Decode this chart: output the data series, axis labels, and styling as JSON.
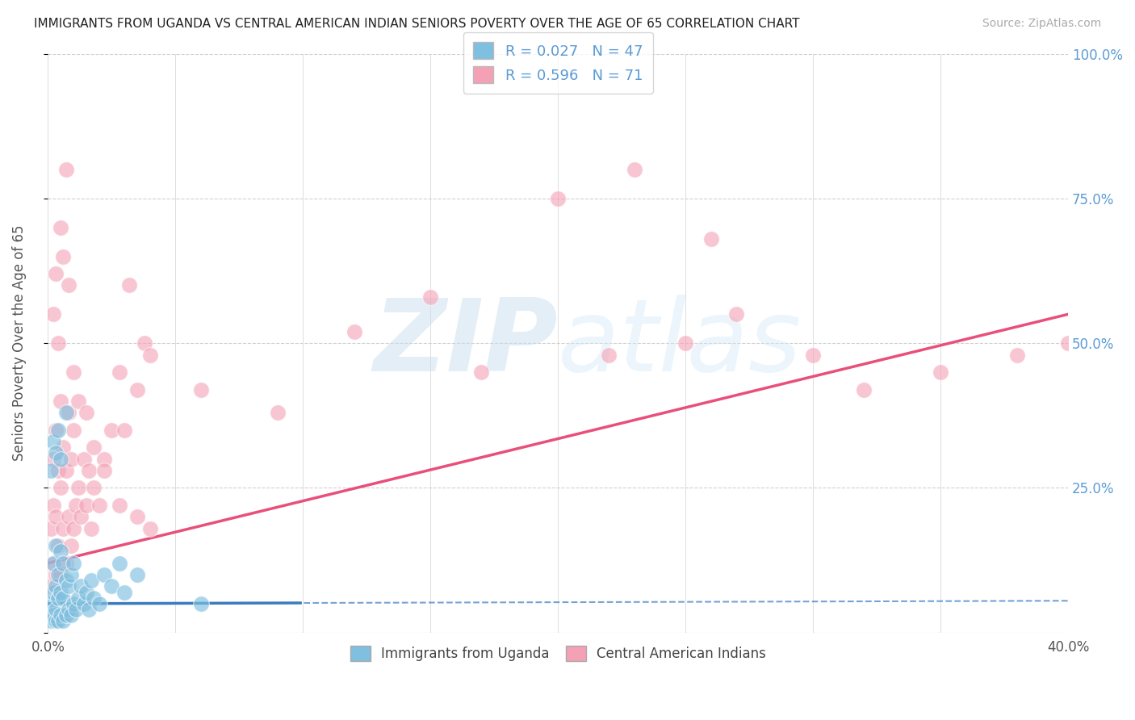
{
  "title": "IMMIGRANTS FROM UGANDA VS CENTRAL AMERICAN INDIAN SENIORS POVERTY OVER THE AGE OF 65 CORRELATION CHART",
  "source": "Source: ZipAtlas.com",
  "ylabel": "Seniors Poverty Over the Age of 65",
  "xlim": [
    0,
    0.4
  ],
  "ylim": [
    0,
    1.0
  ],
  "xticks": [
    0.0,
    0.05,
    0.1,
    0.15,
    0.2,
    0.25,
    0.3,
    0.35,
    0.4
  ],
  "yticks": [
    0.0,
    0.25,
    0.5,
    0.75,
    1.0
  ],
  "legend_r1": "R = 0.027",
  "legend_n1": "N = 47",
  "legend_r2": "R = 0.596",
  "legend_n2": "N = 71",
  "legend_label1": "Immigrants from Uganda",
  "legend_label2": "Central American Indians",
  "color_blue": "#7fbfdf",
  "color_pink": "#f4a0b5",
  "color_blue_line": "#3a7bbf",
  "color_pink_line": "#e8507a",
  "color_right_axis": "#5b9bd5",
  "watermark_color": "#c8dff0",
  "grid_color": "#d0d0d0",
  "background": "#ffffff",
  "blue_x": [
    0.001,
    0.001,
    0.002,
    0.002,
    0.002,
    0.003,
    0.003,
    0.003,
    0.003,
    0.004,
    0.004,
    0.004,
    0.005,
    0.005,
    0.005,
    0.006,
    0.006,
    0.006,
    0.007,
    0.007,
    0.008,
    0.008,
    0.009,
    0.009,
    0.01,
    0.01,
    0.011,
    0.012,
    0.013,
    0.014,
    0.015,
    0.016,
    0.017,
    0.018,
    0.02,
    0.022,
    0.025,
    0.028,
    0.03,
    0.035,
    0.001,
    0.002,
    0.003,
    0.004,
    0.005,
    0.007,
    0.06
  ],
  "blue_y": [
    0.02,
    0.05,
    0.03,
    0.07,
    0.12,
    0.02,
    0.04,
    0.08,
    0.15,
    0.02,
    0.06,
    0.1,
    0.03,
    0.07,
    0.14,
    0.02,
    0.06,
    0.12,
    0.03,
    0.09,
    0.04,
    0.08,
    0.03,
    0.1,
    0.05,
    0.12,
    0.04,
    0.06,
    0.08,
    0.05,
    0.07,
    0.04,
    0.09,
    0.06,
    0.05,
    0.1,
    0.08,
    0.12,
    0.07,
    0.1,
    0.28,
    0.33,
    0.31,
    0.35,
    0.3,
    0.38,
    0.05
  ],
  "pink_x": [
    0.001,
    0.001,
    0.002,
    0.002,
    0.002,
    0.003,
    0.003,
    0.003,
    0.004,
    0.004,
    0.005,
    0.005,
    0.005,
    0.006,
    0.006,
    0.007,
    0.007,
    0.008,
    0.008,
    0.009,
    0.009,
    0.01,
    0.01,
    0.011,
    0.012,
    0.013,
    0.014,
    0.015,
    0.016,
    0.017,
    0.018,
    0.02,
    0.022,
    0.025,
    0.028,
    0.032,
    0.035,
    0.038,
    0.04,
    0.002,
    0.003,
    0.004,
    0.005,
    0.006,
    0.007,
    0.008,
    0.01,
    0.012,
    0.015,
    0.018,
    0.022,
    0.028,
    0.035,
    0.04,
    0.17,
    0.22,
    0.25,
    0.27,
    0.3,
    0.32,
    0.35,
    0.38,
    0.4,
    0.03,
    0.06,
    0.09,
    0.12,
    0.15,
    0.2,
    0.23,
    0.26
  ],
  "pink_y": [
    0.08,
    0.18,
    0.12,
    0.22,
    0.3,
    0.1,
    0.2,
    0.35,
    0.15,
    0.28,
    0.1,
    0.25,
    0.4,
    0.18,
    0.32,
    0.12,
    0.28,
    0.2,
    0.38,
    0.15,
    0.3,
    0.18,
    0.35,
    0.22,
    0.25,
    0.2,
    0.3,
    0.22,
    0.28,
    0.18,
    0.25,
    0.22,
    0.3,
    0.35,
    0.45,
    0.6,
    0.42,
    0.5,
    0.48,
    0.55,
    0.62,
    0.5,
    0.7,
    0.65,
    0.8,
    0.6,
    0.45,
    0.4,
    0.38,
    0.32,
    0.28,
    0.22,
    0.2,
    0.18,
    0.45,
    0.48,
    0.5,
    0.55,
    0.48,
    0.42,
    0.45,
    0.48,
    0.5,
    0.35,
    0.42,
    0.38,
    0.52,
    0.58,
    0.75,
    0.8,
    0.68
  ]
}
